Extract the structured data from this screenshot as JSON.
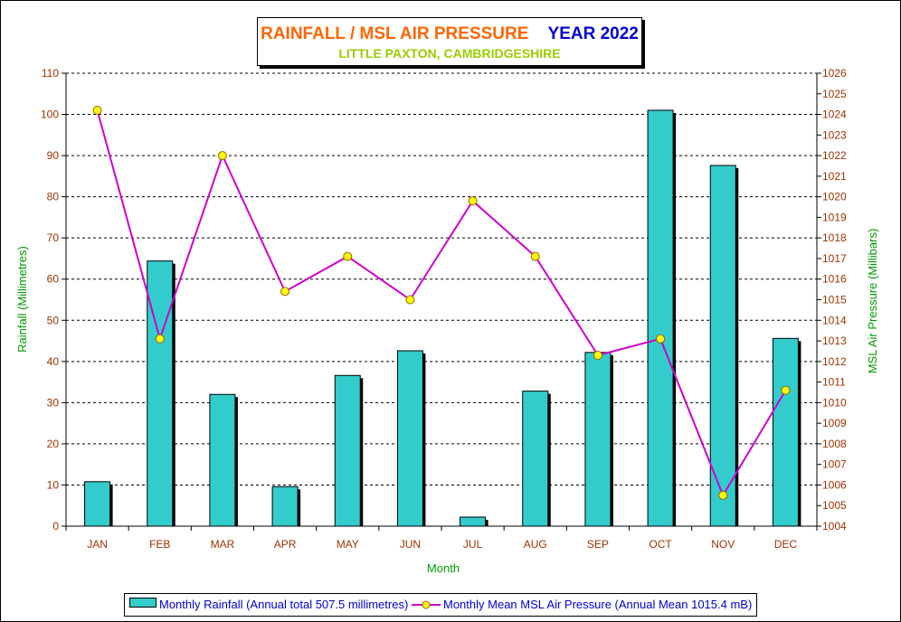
{
  "title": {
    "main": "RAINFALL / MSL AIR PRESSURE",
    "year": "YEAR 2022",
    "subtitle": "LITTLE PAXTON, CAMBRIDGESHIRE"
  },
  "legend": {
    "rainfall_label": "Monthly Rainfall (Annual total 507.5 millimetres)",
    "pressure_label": "Monthly Mean MSL Air Pressure (Annual Mean 1015.4 mB)"
  },
  "colors": {
    "bar": "#33CCCC",
    "line": "#CC00CC",
    "marker": "#FFFF00",
    "axis_text_left": "#993300",
    "axis_text_right": "#993300",
    "axis_title": "#009900",
    "legend_text": "#0000CC"
  },
  "chart_data": {
    "type": "bar",
    "categories": [
      "JAN",
      "FEB",
      "MAR",
      "APR",
      "MAY",
      "JUN",
      "JUL",
      "AUG",
      "SEP",
      "OCT",
      "NOV",
      "DEC"
    ],
    "xlabel": "Month",
    "ylabel": "Rainfall (Millimetres)",
    "y2label": "MSL Air Pressure (Millibars)",
    "ylim": [
      0,
      110
    ],
    "y2lim": [
      1004,
      1026
    ],
    "yticks": [
      "0",
      "10",
      "20",
      "30",
      "40",
      "50",
      "60",
      "70",
      "80",
      "90",
      "100",
      "110"
    ],
    "y2ticks": [
      "1004",
      "1005",
      "1006",
      "1007",
      "1008",
      "1009",
      "1010",
      "1011",
      "1012",
      "1013",
      "1014",
      "1015",
      "1016",
      "1017",
      "1018",
      "1019",
      "1020",
      "1021",
      "1022",
      "1023",
      "1024",
      "1025",
      "1026"
    ],
    "grid": true,
    "legend_position": "bottom",
    "series": [
      {
        "name": "Monthly Rainfall (Annual total 507.5 millimetres)",
        "type": "bar",
        "axis": "left",
        "values": [
          10.8,
          64.4,
          32.0,
          9.6,
          36.6,
          42.6,
          2.2,
          32.8,
          42.2,
          101.0,
          87.6,
          45.6
        ]
      },
      {
        "name": "Monthly Mean MSL Air Pressure (Annual Mean 1015.4 mB)",
        "type": "line",
        "axis": "right",
        "values": [
          1024.2,
          1013.1,
          1022.0,
          1015.4,
          1017.1,
          1015.0,
          1019.8,
          1017.1,
          1012.3,
          1013.1,
          1005.5,
          1010.6
        ]
      }
    ]
  }
}
